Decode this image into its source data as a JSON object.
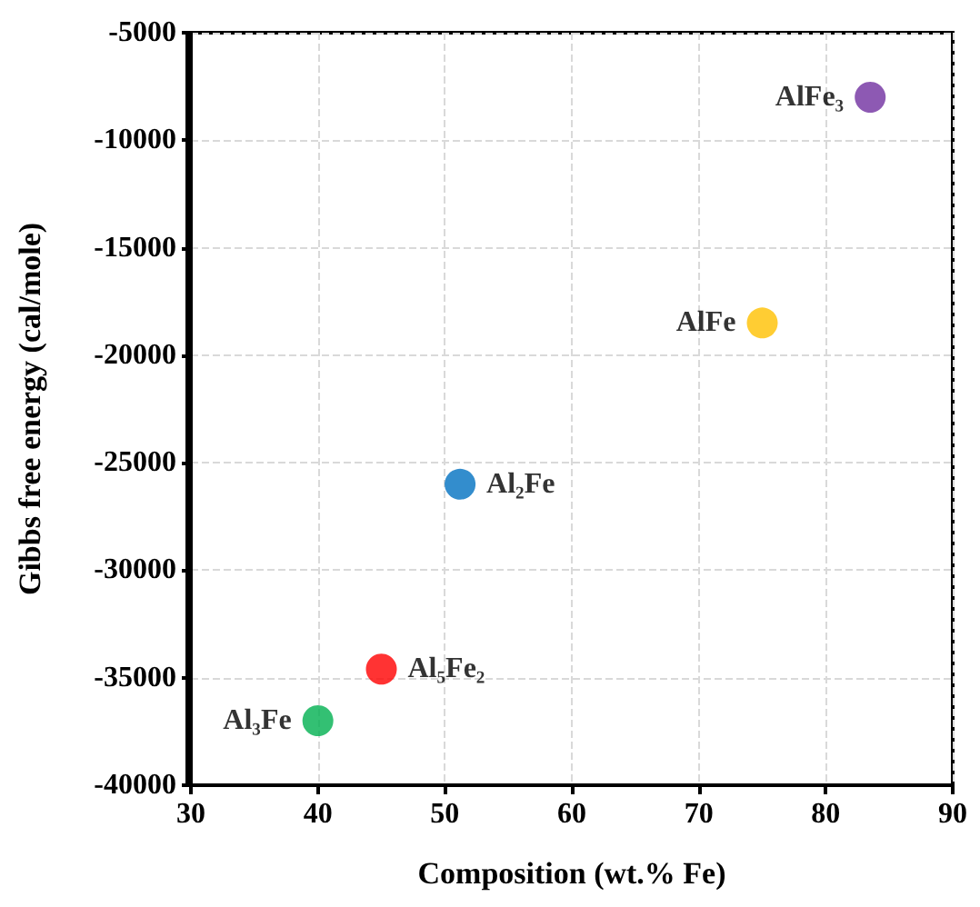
{
  "chart_data": {
    "type": "scatter",
    "xlabel": "Composition (wt.% Fe)",
    "ylabel": "Gibbs free energy (cal/mole)",
    "xlim": [
      30,
      90
    ],
    "xticks": [
      30,
      40,
      50,
      60,
      70,
      80,
      90
    ],
    "ylim": [
      -40000,
      -5000
    ],
    "yticks": [
      -40000,
      -35000,
      -30000,
      -25000,
      -20000,
      -15000,
      -10000,
      -5000
    ],
    "grid": true,
    "marker": "circle",
    "legend": false,
    "series": [
      {
        "name": "AlFe₃",
        "color": "#7030a0",
        "x": [
          83.5
        ],
        "values": [
          -8000
        ]
      },
      {
        "name": "AlFe",
        "color": "#ffc000",
        "x": [
          75
        ],
        "values": [
          -18500
        ]
      },
      {
        "name": "Al₂Fe",
        "color": "#0070c0",
        "x": [
          51.2
        ],
        "values": [
          -26000
        ]
      },
      {
        "name": "Al₅Fe₂",
        "color": "#ff0000",
        "x": [
          45
        ],
        "values": [
          -34600
        ]
      },
      {
        "name": "Al₃Fe",
        "color": "#00b050",
        "x": [
          40
        ],
        "values": [
          -37000
        ]
      }
    ]
  }
}
